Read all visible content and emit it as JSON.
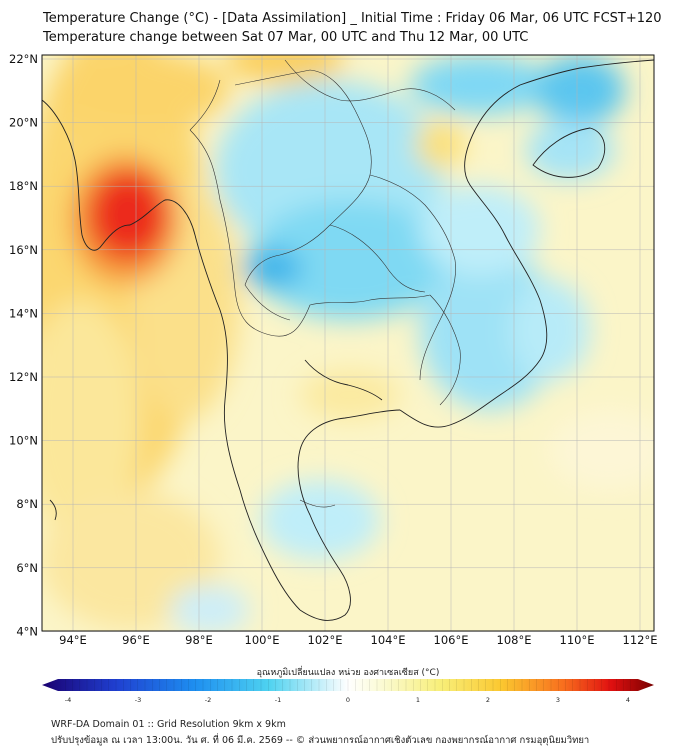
{
  "header": {
    "title_line1": "Temperature Change (°C) - [Data Assimilation] _ Initial Time : Friday 06 Mar, 06 UTC FCST+120",
    "title_line2": "Temperature change between Sat 07 Mar, 00 UTC and Thu 12 Mar, 00 UTC"
  },
  "map": {
    "lat_labels": [
      "22°N",
      "20°N",
      "18°N",
      "16°N",
      "14°N",
      "12°N",
      "10°N",
      "8°N",
      "6°N",
      "4°N"
    ],
    "lon_labels": [
      "94°E",
      "96°E",
      "98°E",
      "100°E",
      "102°E",
      "104°E",
      "106°E",
      "108°E",
      "110°E",
      "112°E"
    ]
  },
  "colorbar": {
    "title": "อุณหภูมิเปลี่ยนแปลง หน่วย องศาเซลเซียส (°C)",
    "tick_labels": [
      "-4",
      "-3",
      "-2",
      "-1",
      "0",
      "1",
      "2",
      "3",
      "4"
    ],
    "cold_color": "#2a0a8a",
    "mid_color": "#ffffff",
    "warm_color": "#7a0000"
  },
  "footer": {
    "line1": "WRF-DA Domain 01 :: Grid Resolution 9km x 9km",
    "line2": "ปรับปรุงข้อมูล ณ เวลา 13:00น. วัน ศ. ที่ 06 มี.ค. 2569 -- © ส่วนพยากรณ์อากาศเชิงตัวเลข กองพยากรณ์อากาศ กรมอุตุนิยมวิทยา"
  }
}
